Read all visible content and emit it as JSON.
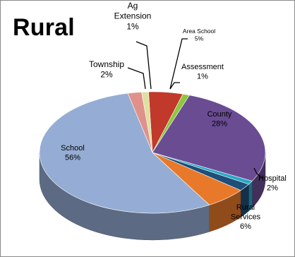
{
  "chart_data": {
    "type": "pie",
    "title": "Rural",
    "series": [
      {
        "label_lines": [
          "Area School",
          "5%"
        ],
        "value": 5,
        "color": "#c0392b"
      },
      {
        "label_lines": [
          "Assessment",
          "1%"
        ],
        "value": 1,
        "color": "#8dc63f"
      },
      {
        "label_lines": [
          "County",
          "28%"
        ],
        "value": 28,
        "color": "#6a4c93"
      },
      {
        "label_lines": [
          "",
          ""
        ],
        "value": 1,
        "color": "#2aa8c4"
      },
      {
        "label_lines": [
          "Hospital",
          "2%"
        ],
        "value": 2,
        "color": "#1f4e79"
      },
      {
        "label_lines": [
          "Rural",
          "Services",
          "6%"
        ],
        "value": 6,
        "color": "#e8792a"
      },
      {
        "label_lines": [
          "School",
          "56%"
        ],
        "value": 56,
        "color": "#95add4"
      },
      {
        "label_lines": [
          "Township",
          "2%"
        ],
        "value": 2,
        "color": "#e0928a"
      },
      {
        "label_lines": [
          "Ag",
          "Extension",
          "1%"
        ],
        "value": 1,
        "color": "#dfe0a0"
      }
    ]
  }
}
